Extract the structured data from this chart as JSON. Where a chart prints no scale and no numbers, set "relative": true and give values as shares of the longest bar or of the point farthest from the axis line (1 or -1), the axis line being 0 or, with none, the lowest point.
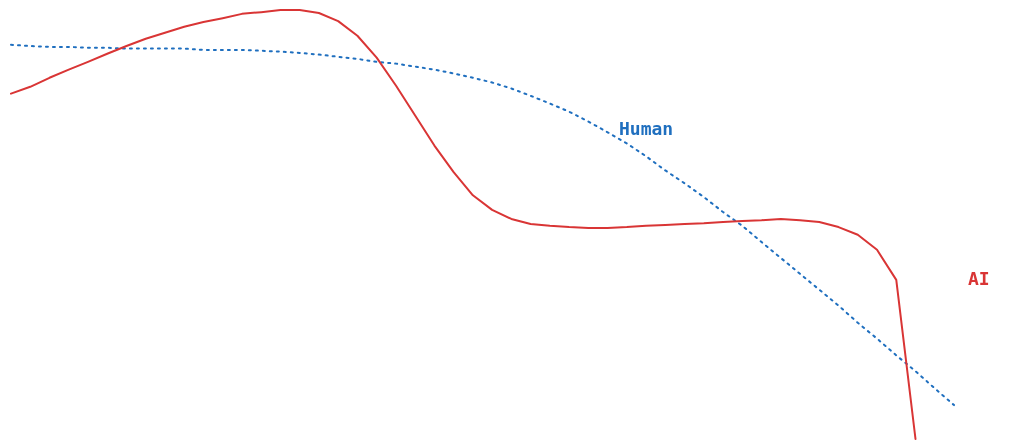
{
  "chart_data": {
    "type": "line",
    "relative": true,
    "categories": [
      null,
      null,
      null,
      null,
      null,
      null,
      null,
      null,
      null,
      null,
      null,
      null,
      null,
      null,
      null,
      null,
      null,
      null,
      null,
      null,
      null,
      null,
      null,
      null,
      null,
      null,
      null,
      null,
      null,
      null,
      null,
      null,
      null,
      null,
      null,
      null,
      null,
      null,
      null,
      null,
      null,
      null,
      null,
      null,
      null,
      null,
      null,
      null,
      null,
      null
    ],
    "series": [
      {
        "name": "Human",
        "color": "#1f6fbf",
        "line_style": "dotted",
        "values": [
          0.919,
          0.916,
          0.914,
          0.914,
          0.912,
          0.912,
          0.91,
          0.91,
          0.91,
          0.91,
          0.907,
          0.907,
          0.907,
          0.905,
          0.903,
          0.9,
          0.896,
          0.891,
          0.886,
          0.879,
          0.875,
          0.868,
          0.861,
          0.852,
          0.842,
          0.831,
          0.817,
          0.8,
          0.782,
          0.763,
          0.74,
          0.715,
          0.689,
          0.659,
          0.626,
          0.596,
          0.564,
          0.529,
          0.497,
          0.459,
          0.422,
          0.385,
          0.348,
          0.311,
          0.271,
          0.234,
          0.195,
          0.158,
          0.118,
          0.079
        ]
      },
      {
        "name": "AI",
        "color": "#d93535",
        "line_style": "solid",
        "values": [
          0.805,
          0.821,
          0.842,
          0.861,
          0.879,
          0.898,
          0.916,
          0.933,
          0.947,
          0.961,
          0.972,
          0.981,
          0.991,
          0.995,
          1,
          1,
          0.993,
          0.974,
          0.94,
          0.889,
          0.824,
          0.754,
          0.684,
          0.622,
          0.568,
          0.534,
          0.513,
          0.501,
          0.497,
          0.494,
          0.492,
          0.492,
          0.494,
          0.497,
          0.499,
          0.501,
          0.503,
          0.506,
          0.508,
          0.51,
          0.513,
          0.51,
          0.506,
          0.494,
          0.476,
          0.441,
          0.371,
          0,
          null,
          null
        ]
      }
    ]
  }
}
